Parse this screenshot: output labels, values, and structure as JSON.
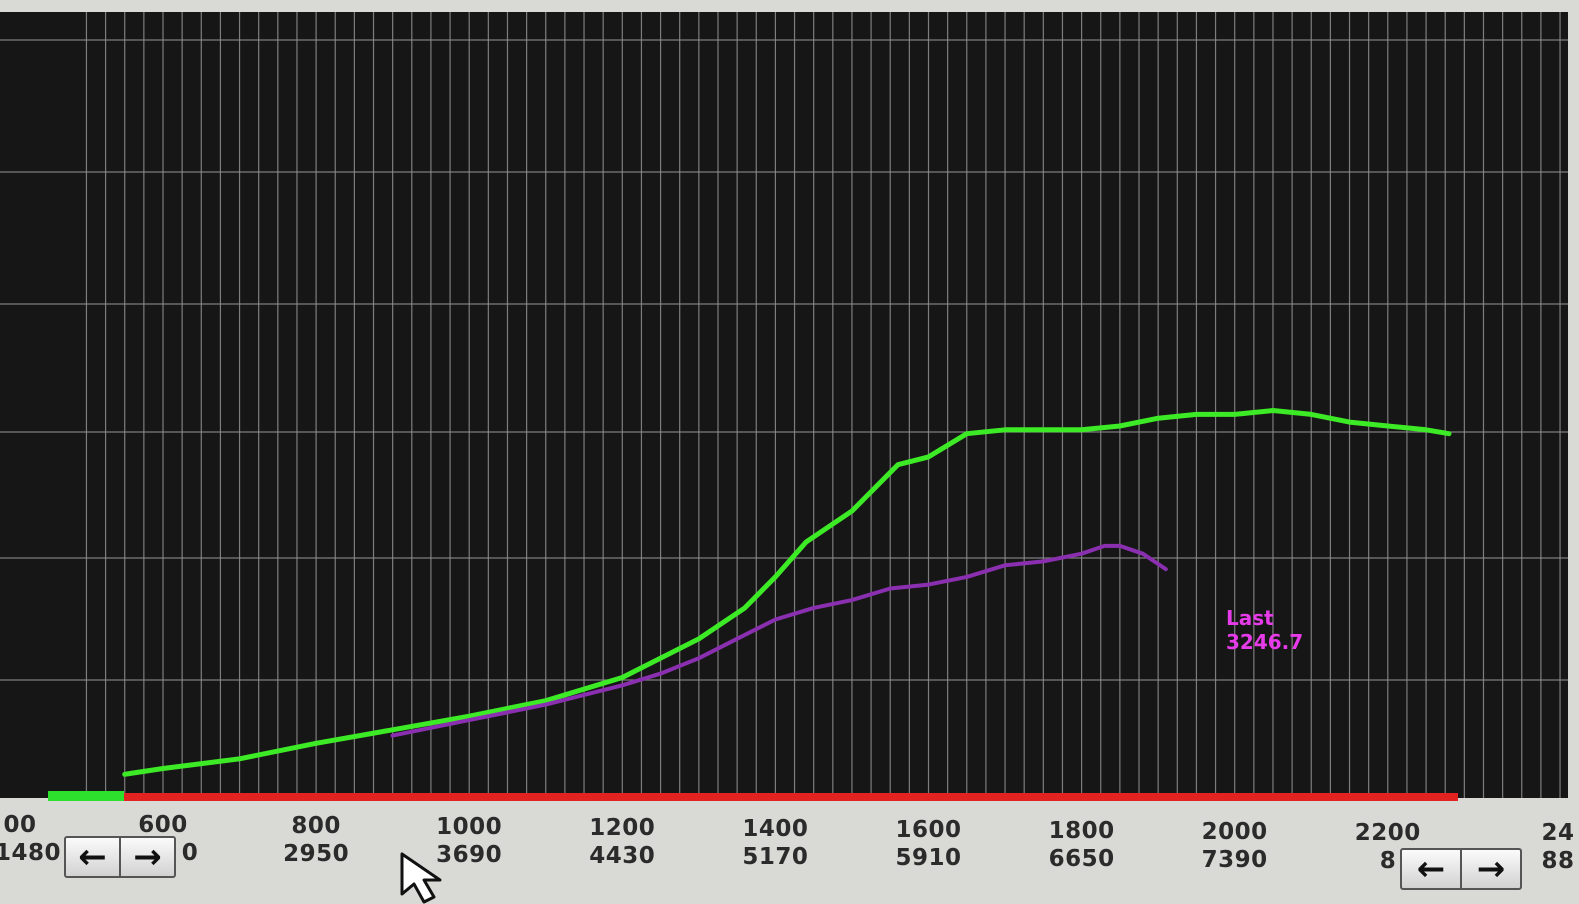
{
  "chart_data": {
    "type": "line",
    "title": "",
    "xlabel": "",
    "ylabel": "",
    "x_ticks_primary": [
      "600",
      "800",
      "1000",
      "1200",
      "1400",
      "1600",
      "1800",
      "2000",
      "2200"
    ],
    "x_ticks_secondary": [
      "2950",
      "3690",
      "4430",
      "5170",
      "5910",
      "6650",
      "7390"
    ],
    "edge_labels": {
      "left_primary": "00",
      "left_secondary": "1480",
      "partial_secondary_600": "0",
      "partial_secondary_2200": "8",
      "right_primary": "24",
      "right_secondary": "88"
    },
    "xlim": [
      520,
      2430
    ],
    "ylim": [
      0,
      100
    ],
    "grid": true,
    "series": [
      {
        "color": "#3dea26",
        "x": [
          550,
          600,
          700,
          800,
          900,
          1000,
          1100,
          1200,
          1300,
          1360,
          1400,
          1440,
          1500,
          1560,
          1600,
          1650,
          1700,
          1760,
          1800,
          1850,
          1900,
          1950,
          2000,
          2050,
          2100,
          2150,
          2200,
          2250,
          2280
        ],
        "y": [
          2,
          3.5,
          6,
          10,
          13.5,
          17,
          21,
          27,
          37,
          45,
          53,
          62,
          70,
          82,
          84,
          90,
          91,
          91,
          91,
          92,
          94,
          95,
          95,
          96,
          95,
          93,
          92,
          91,
          90
        ]
      },
      {
        "color": "#8a2fb0",
        "x": [
          900,
          1000,
          1100,
          1200,
          1250,
          1300,
          1350,
          1400,
          1450,
          1500,
          1550,
          1600,
          1650,
          1700,
          1750,
          1800,
          1830,
          1850,
          1880,
          1910
        ],
        "y": [
          12,
          16,
          20,
          25,
          28,
          32,
          37,
          42,
          45,
          47,
          50,
          51,
          53,
          56,
          57,
          59,
          61,
          61,
          59,
          55
        ]
      }
    ],
    "annotation": {
      "line1": "Last",
      "line2": "3246.7",
      "color": "#e63be8"
    }
  },
  "ui": {
    "scroll_left_arrow": "←",
    "scroll_right_arrow": "→"
  },
  "colors": {
    "plot_bg": "#161616",
    "grid": "#8f8f8f",
    "baseline_red": "#e32222",
    "baseline_green": "#2ee02e",
    "axis_bg": "#d9d9d6"
  }
}
